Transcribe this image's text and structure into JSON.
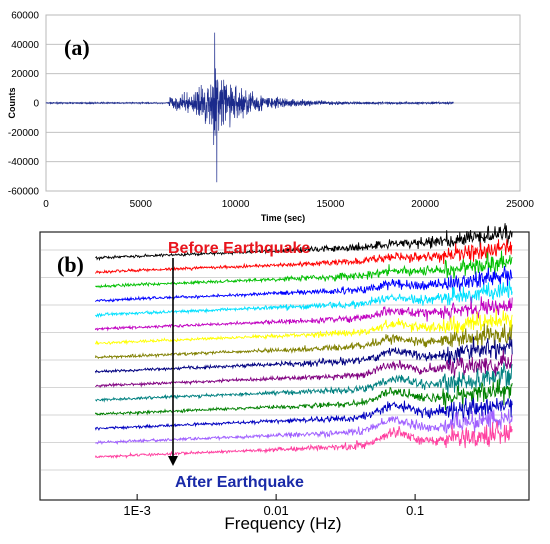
{
  "chart_data": [
    {
      "type": "line",
      "panel_label": "(a)",
      "xlabel": "Time (sec)",
      "ylabel": "Counts",
      "xlim": [
        0,
        25000
      ],
      "ylim": [
        -60000,
        60000
      ],
      "x_ticks": [
        "0",
        "5000",
        "10000",
        "15000",
        "20000",
        "25000"
      ],
      "y_ticks": [
        "60000",
        "40000",
        "20000",
        "0",
        "-20000",
        "-40000",
        "-60000"
      ],
      "grid": true,
      "series_color": "#1b2a8c",
      "signal": {
        "start": 0,
        "end": 21500,
        "onset": 6500,
        "peak_time": 8900,
        "peak_max": 48000,
        "peak_min": -54000,
        "pre_onset_amplitude": 600,
        "onset_amplitude": 7000
      }
    },
    {
      "type": "line",
      "panel_label": "(b)",
      "xlabel": "Frequency (Hz)",
      "x_scale": "log",
      "xlim": [
        0.0002,
        0.55
      ],
      "x_ticks": [
        "1E-3",
        "0.01",
        "0.1"
      ],
      "x_tick_values": [
        0.001,
        0.01,
        0.1
      ],
      "grid": true,
      "series_count": 15,
      "series_colors": [
        "#000000",
        "#ff0000",
        "#00c000",
        "#0000ff",
        "#00e0ff",
        "#c000c0",
        "#ffff00",
        "#808000",
        "#000080",
        "#800080",
        "#008080",
        "#008000",
        "#0000c0",
        "#a060ff",
        "#ff40a0"
      ],
      "annotations": {
        "top": "Before Earthquake",
        "bottom": "After Earthquake",
        "top_color": "#e8141c",
        "bottom_color": "#1a2aa8"
      }
    }
  ]
}
